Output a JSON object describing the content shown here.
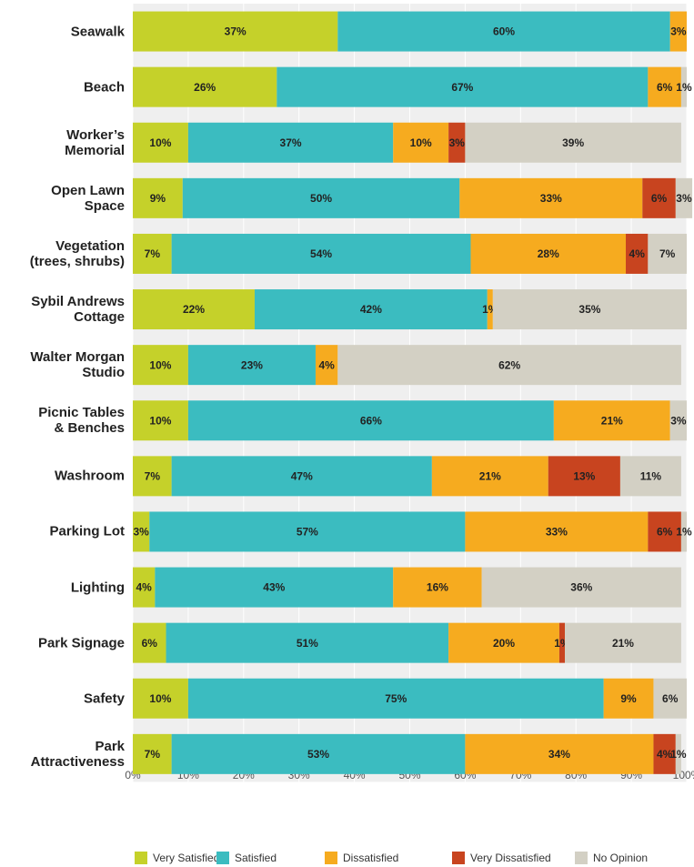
{
  "chart_data": {
    "type": "stacked-bar-horizontal",
    "categories": [
      "Seawalk",
      "Beach",
      "Worker’s\nMemorial",
      "Open Lawn\nSpace",
      "Vegetation\n(trees, shrubs)",
      "Sybil Andrews\nCottage",
      "Walter Morgan\nStudio",
      "Picnic Tables\n& Benches",
      "Washroom",
      "Parking Lot",
      "Lighting",
      "Park Signage",
      "Safety",
      "Park\nAttractiveness"
    ],
    "series": [
      {
        "name": "Very Satisfied",
        "color": "#c5d12a",
        "values": [
          37,
          26,
          10,
          9,
          7,
          22,
          10,
          10,
          7,
          3,
          4,
          6,
          10,
          7
        ],
        "value_labels": [
          "37%",
          "26%",
          "10%",
          "9%",
          "7%",
          "22%",
          "10%",
          "10%",
          "7%",
          "3%",
          "4%",
          "6%",
          "10%",
          "7%"
        ]
      },
      {
        "name": "Satisfied",
        "color": "#3bbcc0",
        "values": [
          60,
          67,
          37,
          50,
          54,
          42,
          23,
          66,
          47,
          57,
          43,
          51,
          75,
          53
        ],
        "value_labels": [
          "60%",
          "67%",
          "37%",
          "50%",
          "54%",
          "42%",
          "23%",
          "66%",
          "47%",
          "57%",
          "43%",
          "51%",
          "75%",
          "53%"
        ]
      },
      {
        "name": "Dissatisfied",
        "color": "#f6ab1f",
        "values": [
          3,
          6,
          10,
          33,
          28,
          1,
          4,
          21,
          21,
          33,
          16,
          20,
          9,
          34
        ],
        "value_labels": [
          "3%",
          "6%",
          "10%",
          "33%",
          "28%",
          "1%",
          "4%",
          "21%",
          "21%",
          "33%",
          "16%",
          "20%",
          "9%",
          "34%"
        ]
      },
      {
        "name": "Very Dissatisfied",
        "color": "#c8441f",
        "values": [
          null,
          null,
          3,
          6,
          4,
          null,
          null,
          null,
          13,
          6,
          null,
          1,
          null,
          4
        ],
        "value_labels": [
          null,
          null,
          "3%",
          "6%",
          "4%",
          null,
          null,
          null,
          "13%",
          "6%",
          null,
          "1%",
          null,
          "4%"
        ]
      },
      {
        "name": "No Opinion",
        "color": "#d3d0c4",
        "values": [
          null,
          1,
          39,
          3,
          7,
          35,
          62,
          3,
          11,
          1,
          36,
          21,
          6,
          1
        ],
        "value_labels": [
          null,
          "1%",
          "39%",
          "3%",
          "7%",
          "35%",
          "62%",
          "3%",
          "11%",
          "1%",
          "36%",
          "21%",
          "6%",
          "1%"
        ]
      }
    ],
    "xlim": [
      0,
      100
    ],
    "xticks": [
      {
        "value": 0,
        "label": "0%"
      },
      {
        "value": 10,
        "label": "10%"
      },
      {
        "value": 20,
        "label": "20%"
      },
      {
        "value": 30,
        "label": "30%"
      },
      {
        "value": 40,
        "label": "40%"
      },
      {
        "value": 50,
        "label": "50%"
      },
      {
        "value": 60,
        "label": "60%"
      },
      {
        "value": 70,
        "label": "70%"
      },
      {
        "value": 80,
        "label": "80%"
      },
      {
        "value": 90,
        "label": "90%"
      },
      {
        "value": 100,
        "label": "100%"
      }
    ],
    "grid": true,
    "legend": "bottom"
  }
}
